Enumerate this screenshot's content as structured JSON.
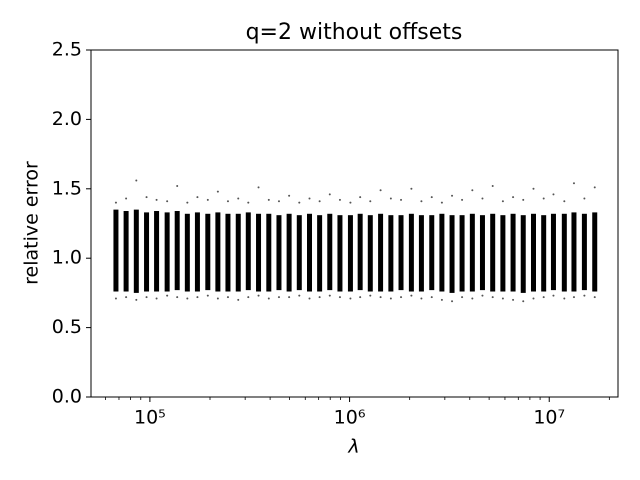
{
  "chart_data": {
    "type": "scatter",
    "title": "q=2 without offsets",
    "x_label": "λ",
    "y_label": "relative error",
    "xscale": "log",
    "xlim": [
      50700,
      22100000
    ],
    "xticks": [
      {
        "value": 100000,
        "label": "10⁵"
      },
      {
        "value": 1000000,
        "label": "10⁶"
      },
      {
        "value": 10000000,
        "label": "10⁷"
      }
    ],
    "xminorticks": [
      60000,
      70000,
      80000,
      90000,
      200000,
      300000,
      400000,
      500000,
      600000,
      700000,
      800000,
      900000,
      2000000,
      3000000,
      4000000,
      5000000,
      6000000,
      7000000,
      8000000,
      9000000,
      20000000
    ],
    "ylim": [
      0,
      2.5
    ],
    "yticks": [
      {
        "value": 0,
        "label": "0.0"
      },
      0.5,
      {
        "value": 1,
        "label": "1.0"
      },
      1.5,
      {
        "value": 2,
        "label": "2.0"
      },
      2.5
    ],
    "color": "#000000",
    "x": [
      67600,
      76000,
      85500,
      96200,
      108000,
      122000,
      137000,
      154000,
      173000,
      195000,
      219000,
      246000,
      277000,
      311000,
      350000,
      394000,
      443000,
      498000,
      560000,
      630000,
      708000,
      796000,
      895000,
      1010000,
      1130000,
      1270000,
      1430000,
      1610000,
      1810000,
      2040000,
      2290000,
      2580000,
      2900000,
      3260000,
      3660000,
      4120000,
      4630000,
      5210000,
      5860000,
      6590000,
      7410000,
      8340000,
      9380000,
      10500000,
      11900000,
      13300000,
      15000000,
      16900000
    ],
    "y_low": [
      0.76,
      0.76,
      0.75,
      0.76,
      0.76,
      0.76,
      0.77,
      0.76,
      0.76,
      0.77,
      0.76,
      0.76,
      0.76,
      0.77,
      0.76,
      0.76,
      0.77,
      0.76,
      0.77,
      0.76,
      0.76,
      0.77,
      0.76,
      0.76,
      0.77,
      0.76,
      0.76,
      0.76,
      0.77,
      0.76,
      0.76,
      0.77,
      0.76,
      0.75,
      0.76,
      0.76,
      0.77,
      0.76,
      0.76,
      0.76,
      0.75,
      0.76,
      0.76,
      0.77,
      0.76,
      0.76,
      0.77,
      0.76
    ],
    "y_high": [
      1.35,
      1.34,
      1.35,
      1.33,
      1.34,
      1.33,
      1.34,
      1.32,
      1.33,
      1.32,
      1.33,
      1.32,
      1.32,
      1.33,
      1.32,
      1.32,
      1.31,
      1.32,
      1.31,
      1.32,
      1.31,
      1.32,
      1.31,
      1.31,
      1.32,
      1.31,
      1.32,
      1.31,
      1.31,
      1.32,
      1.31,
      1.31,
      1.32,
      1.31,
      1.31,
      1.32,
      1.31,
      1.32,
      1.31,
      1.32,
      1.31,
      1.32,
      1.31,
      1.32,
      1.32,
      1.33,
      1.32,
      1.33
    ],
    "y_min": [
      0.71,
      0.72,
      0.7,
      0.72,
      0.71,
      0.73,
      0.72,
      0.71,
      0.72,
      0.73,
      0.71,
      0.72,
      0.7,
      0.72,
      0.73,
      0.71,
      0.72,
      0.72,
      0.73,
      0.71,
      0.72,
      0.73,
      0.72,
      0.71,
      0.72,
      0.73,
      0.72,
      0.71,
      0.72,
      0.73,
      0.71,
      0.72,
      0.7,
      0.69,
      0.72,
      0.71,
      0.73,
      0.72,
      0.71,
      0.7,
      0.69,
      0.71,
      0.72,
      0.73,
      0.71,
      0.72,
      0.73,
      0.72
    ],
    "y_max": [
      1.4,
      1.43,
      1.56,
      1.44,
      1.42,
      1.41,
      1.52,
      1.4,
      1.44,
      1.42,
      1.48,
      1.41,
      1.43,
      1.4,
      1.51,
      1.42,
      1.41,
      1.45,
      1.4,
      1.43,
      1.41,
      1.46,
      1.42,
      1.4,
      1.44,
      1.41,
      1.49,
      1.43,
      1.42,
      1.5,
      1.41,
      1.44,
      1.4,
      1.45,
      1.42,
      1.49,
      1.43,
      1.52,
      1.41,
      1.44,
      1.42,
      1.5,
      1.43,
      1.46,
      1.41,
      1.54,
      1.43,
      1.51
    ]
  }
}
